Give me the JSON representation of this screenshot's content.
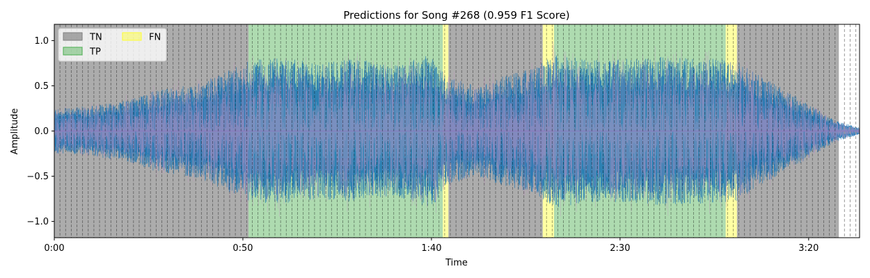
{
  "chart_data": {
    "type": "area",
    "title": "Predictions for Song #268 (0.959 F1 Score)",
    "xlabel": "Time",
    "ylabel": "Amplitude",
    "xlim": [
      0,
      213.5
    ],
    "ylim": [
      -1.18,
      1.18
    ],
    "x_ticks": [
      {
        "value": 0,
        "label": "0:00"
      },
      {
        "value": 50,
        "label": "0:50"
      },
      {
        "value": 100,
        "label": "1:40"
      },
      {
        "value": 150,
        "label": "2:30"
      },
      {
        "value": 200,
        "label": "3:20"
      }
    ],
    "y_ticks": [
      {
        "value": 1.0,
        "label": "1.0"
      },
      {
        "value": 0.5,
        "label": "0.5"
      },
      {
        "value": 0.0,
        "label": "0.0"
      },
      {
        "value": -0.5,
        "label": "−0.5"
      },
      {
        "value": -1.0,
        "label": "−1.0"
      }
    ],
    "segments": [
      {
        "label": "TN",
        "start": 0,
        "end": 51.5
      },
      {
        "label": "TP",
        "start": 51.5,
        "end": 103
      },
      {
        "label": "FN",
        "start": 103,
        "end": 104.5
      },
      {
        "label": "TN",
        "start": 104.5,
        "end": 129.5
      },
      {
        "label": "FN",
        "start": 129.5,
        "end": 132.5
      },
      {
        "label": "TP",
        "start": 132.5,
        "end": 178
      },
      {
        "label": "FN",
        "start": 178,
        "end": 181
      },
      {
        "label": "TN",
        "start": 181,
        "end": 208
      }
    ],
    "class_colors": {
      "TN": "#808080",
      "TP": "#4caf50",
      "FN": "#ffff33"
    },
    "legend": {
      "placement": "top-left",
      "columns": 2,
      "entries": [
        "TN",
        "TP",
        "FN"
      ]
    },
    "beat_interval": 1.5,
    "beat_end": 208,
    "trailing_beats": [
      209.5,
      211,
      212.5
    ],
    "waveform_colors": {
      "primary": "#1f77b4",
      "secondary": "#c994c7",
      "tp_overlay": "#17becf"
    },
    "envelope": [
      {
        "t": 0,
        "a": 0.25
      },
      {
        "t": 10,
        "a": 0.28
      },
      {
        "t": 20,
        "a": 0.35
      },
      {
        "t": 27,
        "a": 0.45
      },
      {
        "t": 38,
        "a": 0.52
      },
      {
        "t": 45,
        "a": 0.65
      },
      {
        "t": 52,
        "a": 0.78
      },
      {
        "t": 60,
        "a": 0.82
      },
      {
        "t": 70,
        "a": 0.75
      },
      {
        "t": 80,
        "a": 0.8
      },
      {
        "t": 90,
        "a": 0.72
      },
      {
        "t": 100,
        "a": 0.85
      },
      {
        "t": 104,
        "a": 0.6
      },
      {
        "t": 112,
        "a": 0.5
      },
      {
        "t": 120,
        "a": 0.62
      },
      {
        "t": 128,
        "a": 0.72
      },
      {
        "t": 133,
        "a": 0.85
      },
      {
        "t": 145,
        "a": 0.78
      },
      {
        "t": 160,
        "a": 0.82
      },
      {
        "t": 175,
        "a": 0.8
      },
      {
        "t": 181,
        "a": 0.78
      },
      {
        "t": 190,
        "a": 0.55
      },
      {
        "t": 200,
        "a": 0.3
      },
      {
        "t": 207,
        "a": 0.12
      },
      {
        "t": 213.5,
        "a": 0.04
      }
    ]
  }
}
